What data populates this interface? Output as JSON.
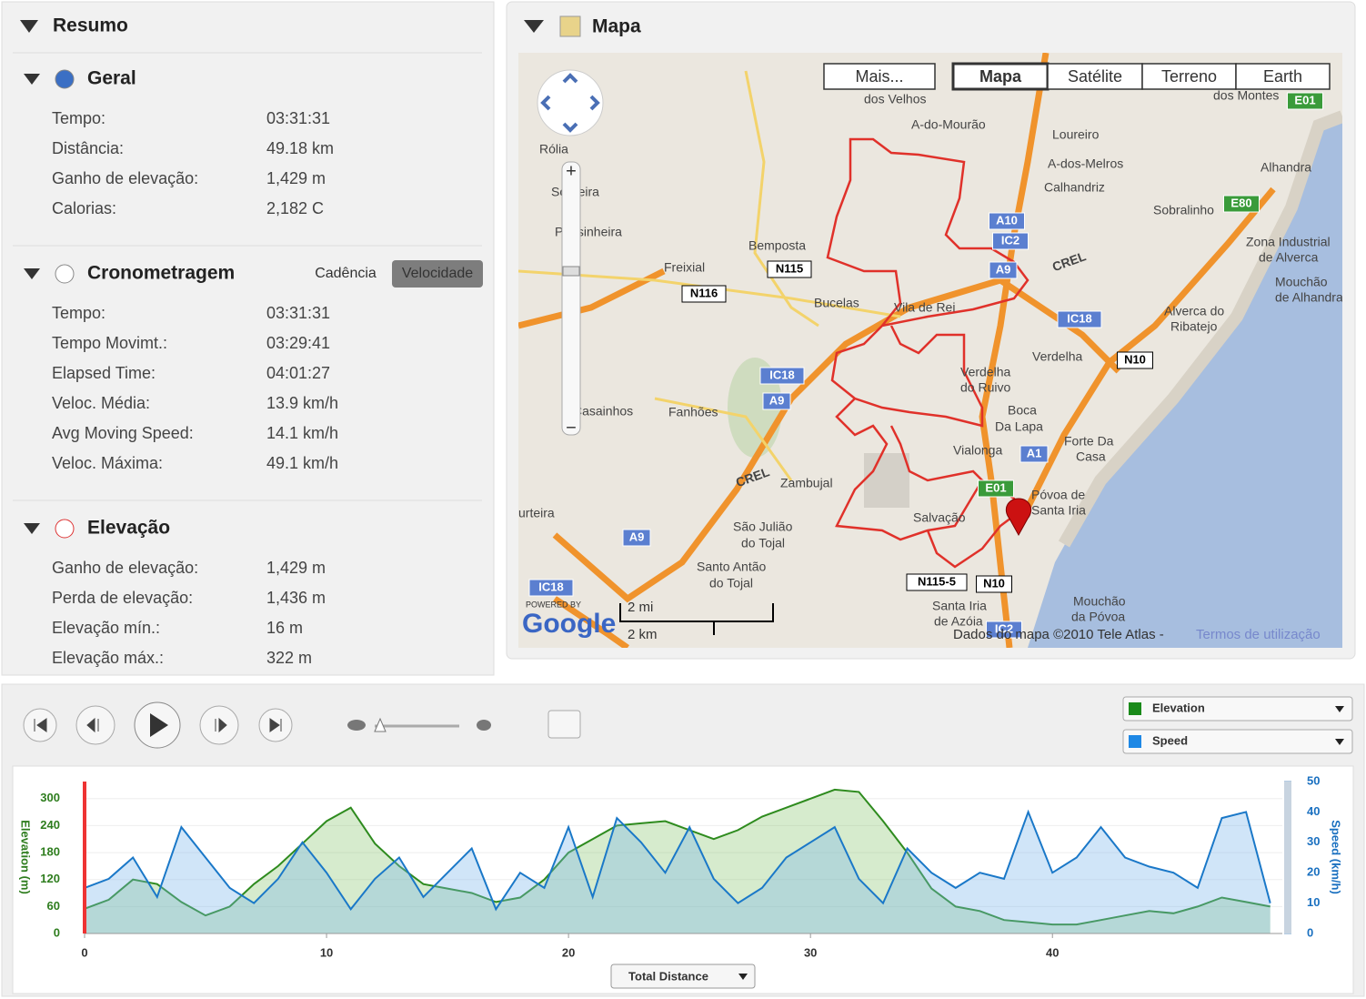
{
  "summary": {
    "title": "Resumo",
    "sections": [
      {
        "title": "Geral",
        "rows": [
          [
            "Tempo:",
            "03:31:31"
          ],
          [
            "Distância:",
            "49.18 km"
          ],
          [
            "Ganho de elevação:",
            "1,429 m"
          ],
          [
            "Calorias:",
            "2,182 C"
          ]
        ]
      },
      {
        "title": "Cronometragem",
        "tabs": [
          "Cadência",
          "Velocidade"
        ],
        "rows": [
          [
            "Tempo:",
            "03:31:31"
          ],
          [
            "Tempo Movimt.:",
            "03:29:41"
          ],
          [
            "Elapsed Time:",
            "04:01:27"
          ],
          [
            "Veloc. Média:",
            "13.9 km/h"
          ],
          [
            "Avg Moving Speed:",
            "14.1 km/h"
          ],
          [
            "Veloc. Máxima:",
            "49.1 km/h"
          ]
        ]
      },
      {
        "title": "Elevação",
        "rows": [
          [
            "Ganho de elevação:",
            "1,429 m"
          ],
          [
            "Perda de elevação:",
            "1,436 m"
          ],
          [
            "Elevação mín.:",
            "16 m"
          ],
          [
            "Elevação máx.:",
            "322 m"
          ]
        ]
      }
    ]
  },
  "map": {
    "title": "Mapa",
    "buttons": [
      "Mais...",
      "Mapa",
      "Satélite",
      "Terreno",
      "Earth"
    ],
    "labels": [
      "dos Velhos",
      "A-do-Mourão",
      "Loureiro",
      "A-dos-Melros",
      "Calhandriz",
      "Sobralinho",
      "Alhandra",
      "dos Montes",
      "Rólia",
      "Sobreira",
      "Pousinheira",
      "Bemposta",
      "Freixial",
      "Bucelas",
      "Vila de Rei",
      "Zona Industrial",
      "de Alverca",
      "Alverca do",
      "Ribatejo",
      "Verdelha",
      "Verdelha",
      "do Ruivo",
      "Boca",
      "Da Lapa",
      "Vialonga",
      "Forte Da",
      "Casa",
      "Fanhões",
      "Casainhos",
      "Zambujal",
      "Póvoa de",
      "Santa Iria",
      "Salvação",
      "São Julião",
      "do Tojal",
      "Santo Antão",
      "do Tojal",
      "Santa Iria",
      "de Azóia",
      "Mouchão",
      "da Póvoa",
      "urteira",
      "Mouchão",
      "de Alhandra",
      "CREL",
      "CREL"
    ],
    "shields": [
      "A10",
      "IC2",
      "A9",
      "N115",
      "N116",
      "IC18",
      "N10",
      "IC18",
      "A9",
      "A1",
      "E01",
      "E80",
      "E01",
      "A9",
      "IC18",
      "N115-5",
      "N10",
      "IC2"
    ],
    "scale": [
      "2 mi",
      "2 km"
    ],
    "powered_by": "POWERED BY",
    "logo": "Google",
    "attribution": "Dados do mapa ©2010 Tele Atlas -",
    "terms": "Termos de utilização"
  },
  "chart_data": {
    "type": "area",
    "x_label": "Total Distance",
    "y_label": "Elevation (m)",
    "y2_label": "Speed (km/h)",
    "x": [
      0,
      1,
      2,
      3,
      4,
      5,
      6,
      7,
      8,
      9,
      10,
      11,
      12,
      13,
      14,
      15,
      16,
      17,
      18,
      19,
      20,
      21,
      22,
      23,
      24,
      25,
      26,
      27,
      28,
      29,
      30,
      31,
      32,
      33,
      34,
      35,
      36,
      37,
      38,
      39,
      40,
      41,
      42,
      43,
      44,
      45,
      46,
      47,
      48,
      49
    ],
    "series": [
      {
        "name": "Elevation",
        "color": "#2e8b1e",
        "values": [
          55,
          75,
          120,
          110,
          70,
          40,
          60,
          110,
          150,
          200,
          250,
          280,
          200,
          150,
          110,
          100,
          90,
          70,
          80,
          120,
          180,
          210,
          240,
          245,
          250,
          230,
          210,
          230,
          260,
          280,
          300,
          320,
          315,
          250,
          180,
          100,
          60,
          50,
          30,
          25,
          20,
          20,
          30,
          40,
          50,
          45,
          60,
          80,
          70,
          60
        ]
      },
      {
        "name": "Speed",
        "color": "#1a78c8",
        "axis": "y2",
        "values": [
          15,
          18,
          25,
          12,
          35,
          25,
          15,
          10,
          18,
          30,
          20,
          8,
          18,
          25,
          12,
          20,
          28,
          8,
          20,
          15,
          35,
          12,
          38,
          30,
          20,
          35,
          18,
          10,
          15,
          25,
          30,
          35,
          18,
          10,
          28,
          20,
          15,
          20,
          18,
          40,
          20,
          25,
          35,
          25,
          22,
          20,
          15,
          38,
          40,
          10
        ]
      }
    ],
    "xlim": [
      0,
      49.5
    ],
    "xticks": [
      0,
      10,
      20,
      30,
      40
    ],
    "ylim": [
      0,
      338
    ],
    "yticks": [
      0,
      60,
      120,
      180,
      240,
      300
    ],
    "y2lim": [
      0,
      50
    ],
    "y2ticks": [
      0,
      10,
      20,
      30,
      40,
      50
    ],
    "grid": true
  }
}
